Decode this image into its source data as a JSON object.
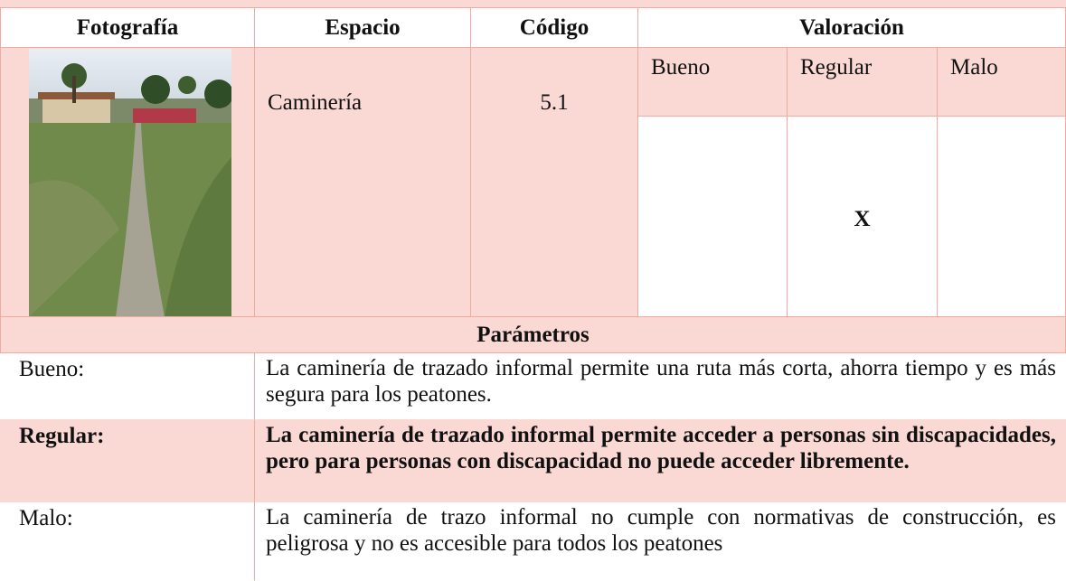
{
  "header": {
    "photo": "Fotografía",
    "space": "Espacio",
    "code": "Código",
    "rating": "Valoración"
  },
  "ratings": [
    "Bueno",
    "Regular",
    "Malo"
  ],
  "item": {
    "space": "Caminería",
    "code": "5.1",
    "mark": "X"
  },
  "parameters": {
    "title": "Parámetros",
    "rows": [
      {
        "label": "Bueno:",
        "text": "La caminería de trazado informal permite una ruta más corta, ahorra tiempo y es más segura para los peatones."
      },
      {
        "label": "Regular:",
        "text": "La caminería de trazado informal permite acceder a personas sin discapacidades, pero para personas con discapacidad no puede acceder libremente."
      },
      {
        "label": "Malo:",
        "text": "La caminería de trazo informal no cumple con normativas de construcción, es peligrosa y no es accesible para todos los peatones"
      }
    ]
  }
}
